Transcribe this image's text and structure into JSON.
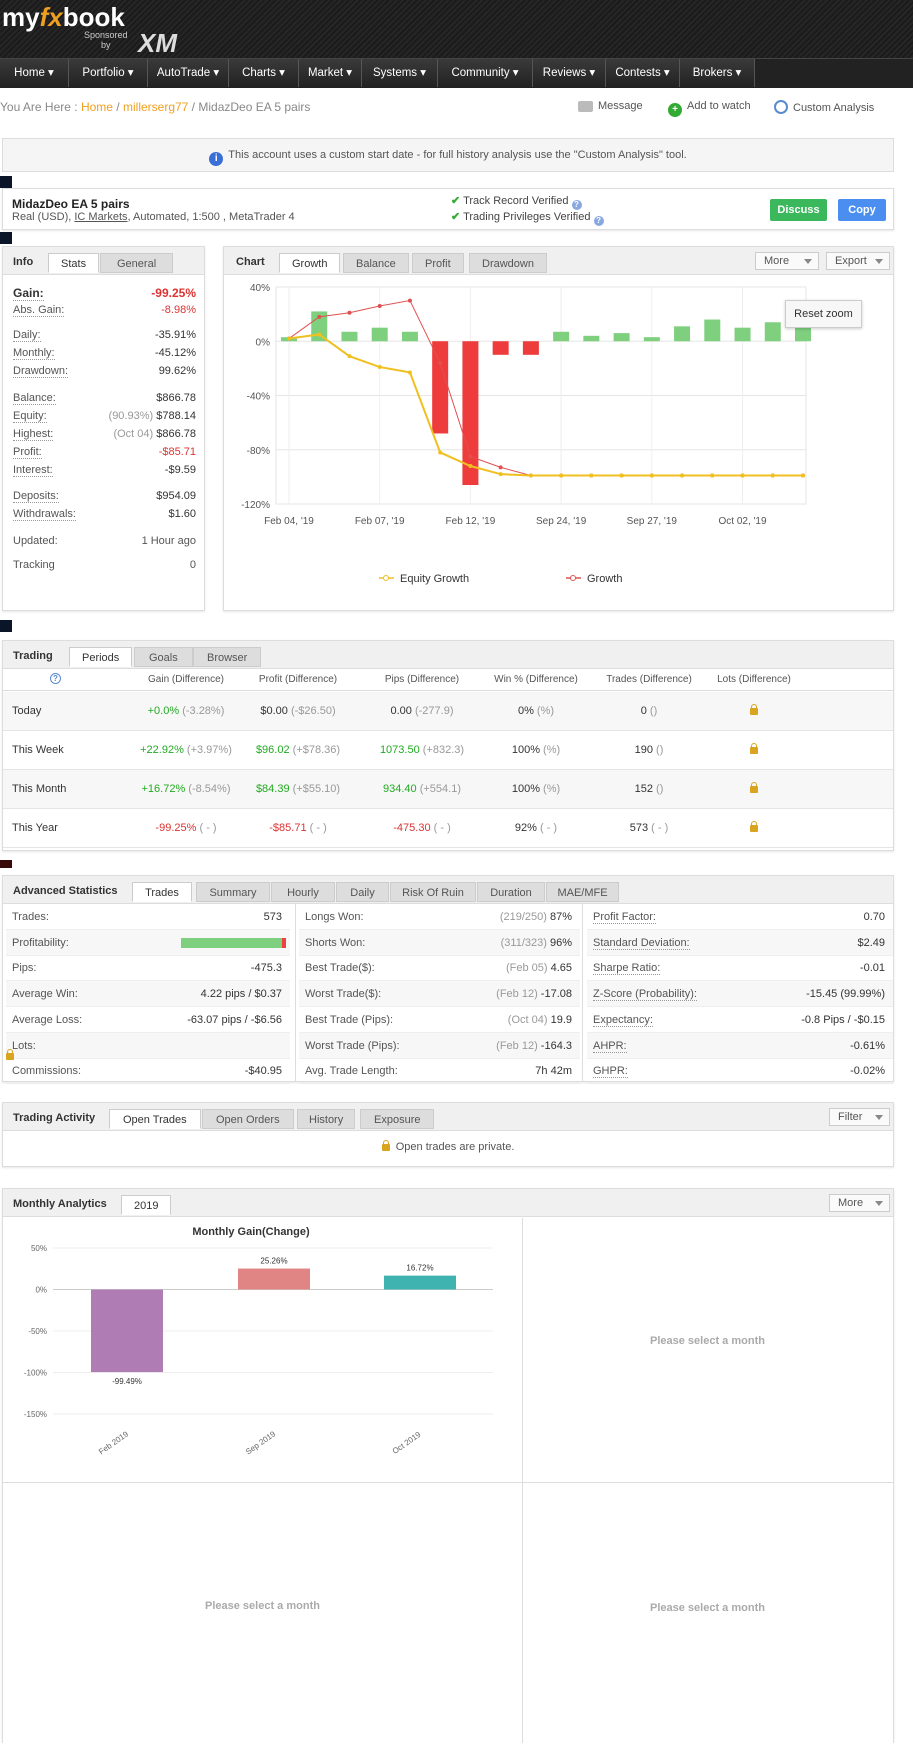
{
  "header": {
    "logo_my": "my",
    "logo_fx": "fx",
    "logo_book": "book",
    "sponsored": "Sponsored",
    "by": "by",
    "xm": "XM"
  },
  "nav": [
    "Home ▾",
    "Portfolio ▾",
    "AutoTrade ▾",
    "Charts ▾",
    "Market ▾",
    "Systems ▾",
    "Community ▾",
    "Reviews ▾",
    "Contests ▾",
    "Brokers ▾"
  ],
  "breadcrumb": {
    "prefix": "You Are Here : ",
    "home": "Home",
    "sep1": " / ",
    "user": "millerserg77",
    "sep2": " / ",
    "page": "MidazDeo EA 5 pairs"
  },
  "actions": {
    "message": "Message",
    "watch": "Add to watch",
    "custom": "Custom Analysis"
  },
  "notice": "This account uses a custom start date - for full history analysis use the \"Custom Analysis\" tool.",
  "account": {
    "name": "MidazDeo EA 5 pairs",
    "desc_pre": "Real (USD), ",
    "broker": "IC Markets",
    "desc_post": ", Automated, 1:500 , MetaTrader 4",
    "track": "Track Record Verified",
    "privileges": "Trading Privileges Verified",
    "discuss": "Discuss",
    "copy": "Copy"
  },
  "info": {
    "title": "Info",
    "tabs": [
      "Stats",
      "General"
    ],
    "rows": [
      {
        "label": "Gain:",
        "value": "-99.25%"
      },
      {
        "label": "Abs. Gain:",
        "value": "-8.98%"
      },
      {
        "label": "Daily:",
        "value": "-35.91%"
      },
      {
        "label": "Monthly:",
        "value": "-45.12%"
      },
      {
        "label": "Drawdown:",
        "value": "99.62%"
      },
      {
        "label": "Balance:",
        "value": "$866.78"
      },
      {
        "label": "Equity:",
        "sub": "(90.93%)",
        "value": "$788.14"
      },
      {
        "label": "Highest:",
        "sub": "(Oct 04)",
        "value": "$866.78"
      },
      {
        "label": "Profit:",
        "value": "-$85.71"
      },
      {
        "label": "Interest:",
        "value": "-$9.59"
      },
      {
        "label": "Deposits:",
        "value": "$954.09"
      },
      {
        "label": "Withdrawals:",
        "value": "$1.60"
      },
      {
        "label": "Updated:",
        "value": "1 Hour ago"
      },
      {
        "label": "Tracking",
        "value": "0"
      }
    ]
  },
  "chart": {
    "title": "Chart",
    "tabs": [
      "Growth",
      "Balance",
      "Profit",
      "Drawdown"
    ],
    "more": "More",
    "export": "Export",
    "reset": "Reset zoom",
    "legend_equity": "Equity Growth",
    "legend_growth": "Growth"
  },
  "chart_data": [
    {
      "type": "bar+line",
      "title": "",
      "x_ticks": [
        "Feb 04, '19",
        "Feb 07, '19",
        "Feb 12, '19",
        "Sep 24, '19",
        "Sep 27, '19",
        "Oct 02, '19"
      ],
      "y_ticks": [
        "40%",
        "0%",
        "-40%",
        "-80%",
        "-120%"
      ],
      "ylim": [
        -120,
        40
      ],
      "bars": [
        3,
        22,
        7,
        10,
        7,
        -68,
        -106,
        -10,
        -10,
        7,
        4,
        6,
        3,
        11,
        16,
        10,
        14,
        22
      ],
      "series": [
        {
          "name": "Growth",
          "values": [
            2,
            18,
            21,
            26,
            30,
            -16,
            -85,
            -93,
            -99,
            -99,
            -99,
            -99,
            -99,
            -99,
            -99,
            -99,
            -99,
            -99
          ]
        },
        {
          "name": "Equity Growth",
          "values": [
            2,
            5,
            -11,
            -19,
            -23,
            -82,
            -92,
            -98,
            -99,
            -99,
            -99,
            -99,
            -99,
            -99,
            -99,
            -99,
            -99,
            -99
          ]
        }
      ]
    },
    {
      "type": "bar",
      "title": "Monthly Gain(Change)",
      "categories": [
        "Feb 2019",
        "Sep 2019",
        "Oct 2019"
      ],
      "values": [
        -99.49,
        25.26,
        16.72
      ],
      "labels": [
        "-99.49%",
        "25.26%",
        "16.72%"
      ],
      "y_ticks": [
        "50%",
        "0%",
        "-50%",
        "-100%",
        "-150%"
      ],
      "ylim": [
        -150,
        50
      ],
      "colors": [
        "#b07cb4",
        "#e08484",
        "#3fb3b0"
      ]
    }
  ],
  "trading": {
    "title": "Trading",
    "tabs": [
      "Periods",
      "Goals",
      "Browser"
    ],
    "headers": [
      "Gain (Difference)",
      "Profit (Difference)",
      "Pips (Difference)",
      "Win % (Difference)",
      "Trades (Difference)",
      "Lots (Difference)"
    ],
    "rows": [
      {
        "period": "Today",
        "gain": "+0.0%",
        "gain_d": "(-3.28%)",
        "profit": "$0.00",
        "profit_d": "(-$26.50)",
        "pips": "0.00",
        "pips_d": "(-277.9)",
        "win": "0%",
        "win_d": "(%)",
        "trades": "0",
        "trades_d": "()"
      },
      {
        "period": "This Week",
        "gain": "+22.92%",
        "gain_d": "(+3.97%)",
        "profit": "$96.02",
        "profit_d": "(+$78.36)",
        "pips": "1073.50",
        "pips_d": "(+832.3)",
        "win": "100%",
        "win_d": "(%)",
        "trades": "190",
        "trades_d": "()"
      },
      {
        "period": "This Month",
        "gain": "+16.72%",
        "gain_d": "(-8.54%)",
        "profit": "$84.39",
        "profit_d": "(+$55.10)",
        "pips": "934.40",
        "pips_d": "(+554.1)",
        "win": "100%",
        "win_d": "(%)",
        "trades": "152",
        "trades_d": "()"
      },
      {
        "period": "This Year",
        "gain": "-99.25%",
        "gain_d": "( - )",
        "profit": "-$85.71",
        "profit_d": "( - )",
        "pips": "-475.30",
        "pips_d": "( - )",
        "win": "92%",
        "win_d": "( - )",
        "trades": "573",
        "trades_d": "( - )"
      }
    ]
  },
  "advanced": {
    "title": "Advanced Statistics",
    "tabs": [
      "Trades",
      "Summary",
      "Hourly",
      "Daily",
      "Risk Of Ruin",
      "Duration",
      "MAE/MFE"
    ],
    "col1": [
      {
        "label": "Trades:",
        "value": "573"
      },
      {
        "label": "Profitability:",
        "value": ""
      },
      {
        "label": "Pips:",
        "value": "-475.3"
      },
      {
        "label": "Average Win:",
        "value": "4.22 pips / $0.37"
      },
      {
        "label": "Average Loss:",
        "value": "-63.07 pips / -$6.56"
      },
      {
        "label": "Lots:",
        "value": ""
      },
      {
        "label": "Commissions:",
        "value": "-$40.95"
      }
    ],
    "profitability": 0.96,
    "col2": [
      {
        "label": "Longs Won:",
        "sub": "(219/250)",
        "value": "87%"
      },
      {
        "label": "Shorts Won:",
        "sub": "(311/323)",
        "value": "96%"
      },
      {
        "label": "Best Trade($):",
        "sub": "(Feb 05)",
        "value": "4.65"
      },
      {
        "label": "Worst Trade($):",
        "sub": "(Feb 12)",
        "value": "-17.08"
      },
      {
        "label": "Best Trade (Pips):",
        "sub": "(Oct 04)",
        "value": "19.9"
      },
      {
        "label": "Worst Trade (Pips):",
        "sub": "(Feb 12)",
        "value": "-164.3"
      },
      {
        "label": "Avg. Trade Length:",
        "sub": "",
        "value": "7h 42m"
      }
    ],
    "col3": [
      {
        "label": "Profit Factor:",
        "value": "0.70"
      },
      {
        "label": "Standard Deviation:",
        "value": "$2.49"
      },
      {
        "label": "Sharpe Ratio:",
        "value": "-0.01"
      },
      {
        "label": "Z-Score (Probability):",
        "value": "-15.45 (99.99%)"
      },
      {
        "label": "Expectancy:",
        "value": "-0.8 Pips / -$0.15"
      },
      {
        "label": "AHPR:",
        "value": "-0.61%"
      },
      {
        "label": "GHPR:",
        "value": "-0.02%"
      }
    ]
  },
  "activity": {
    "title": "Trading Activity",
    "tabs": [
      "Open Trades",
      "Open Orders",
      "History",
      "Exposure"
    ],
    "filter": "Filter",
    "private": "Open trades are private."
  },
  "monthly": {
    "title": "Monthly Analytics",
    "tab": "2019",
    "more": "More",
    "select": "Please select a month"
  }
}
